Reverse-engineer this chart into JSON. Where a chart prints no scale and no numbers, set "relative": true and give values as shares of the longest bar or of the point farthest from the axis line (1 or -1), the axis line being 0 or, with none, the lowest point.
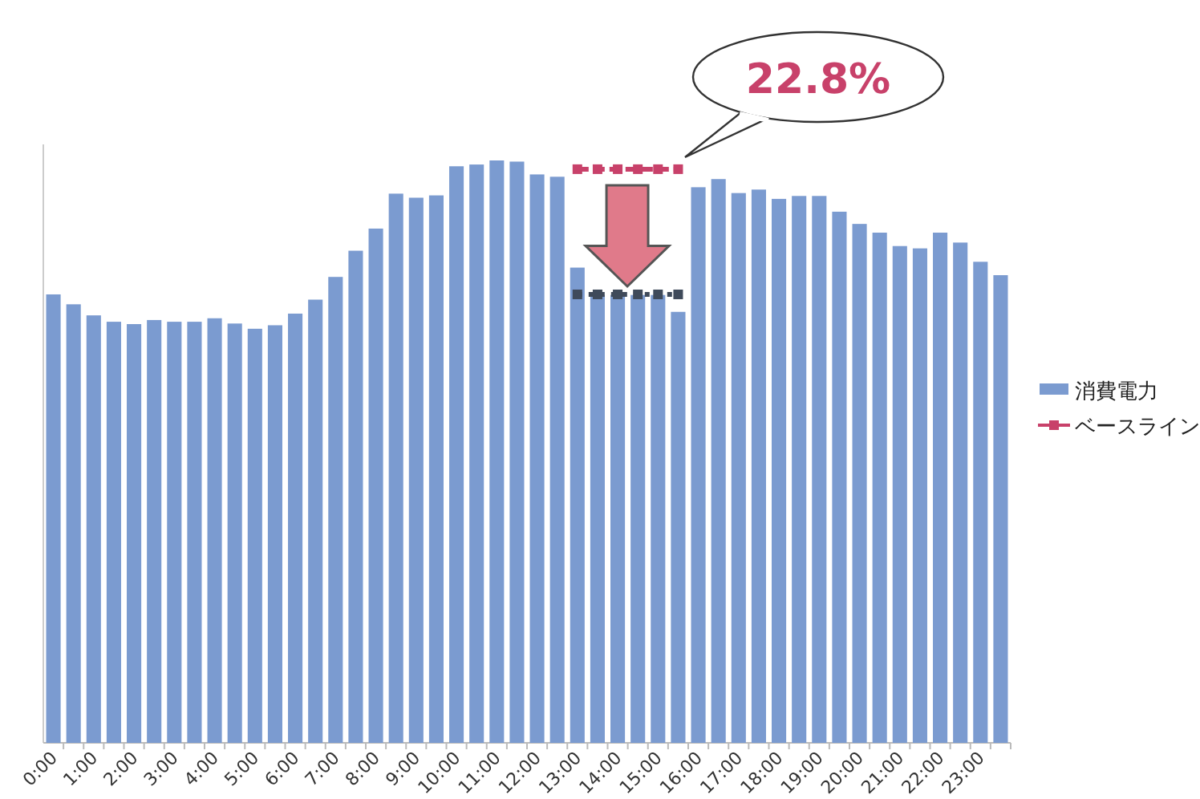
{
  "chart_data": {
    "type": "bar",
    "relative": true,
    "legend": "right",
    "grid": false,
    "categories": [
      "0:00",
      null,
      "1:00",
      null,
      "2:00",
      null,
      "3:00",
      null,
      "4:00",
      null,
      "5:00",
      null,
      "6:00",
      null,
      "7:00",
      null,
      "8:00",
      null,
      "9:00",
      null,
      "10:00",
      null,
      "11:00",
      null,
      "12:00",
      null,
      "13:00",
      null,
      "14:00",
      null,
      "15:00",
      null,
      "16:00",
      null,
      "17:00",
      null,
      "18:00",
      null,
      "19:00",
      null,
      "20:00",
      null,
      "21:00",
      null,
      "22:00",
      null,
      "23:00",
      null
    ],
    "series": [
      {
        "name": "消費電力",
        "color": "#7b9bd0",
        "values": [
          0.77,
          0.753,
          0.734,
          0.723,
          0.719,
          0.726,
          0.723,
          0.723,
          0.729,
          0.72,
          0.711,
          0.717,
          0.737,
          0.761,
          0.8,
          0.845,
          0.883,
          0.943,
          0.936,
          0.94,
          0.99,
          0.993,
          1,
          0.998,
          0.976,
          0.972,
          0.816,
          0.769,
          0.769,
          0.769,
          0.769,
          0.74,
          0.954,
          0.968,
          0.944,
          0.95,
          0.934,
          0.939,
          0.939,
          0.912,
          0.891,
          0.876,
          0.853,
          0.849,
          0.876,
          0.859,
          0.826,
          0.803
        ]
      },
      {
        "name": "ベースライン",
        "type": "line",
        "color": "#c8416a",
        "marker": "square",
        "line_style": "dashed",
        "values": [
          null,
          null,
          null,
          null,
          null,
          null,
          null,
          null,
          null,
          null,
          null,
          null,
          null,
          null,
          null,
          null,
          null,
          null,
          null,
          null,
          null,
          null,
          null,
          null,
          null,
          null,
          0.985,
          0.985,
          0.985,
          0.985,
          0.985,
          0.985,
          null,
          null,
          null,
          null,
          null,
          null,
          null,
          null,
          null,
          null,
          null,
          null,
          null,
          null,
          null,
          null
        ]
      },
      {
        "type": "line",
        "color": "#3f4a5a",
        "marker": "square",
        "line_style": "dotted",
        "values": [
          null,
          null,
          null,
          null,
          null,
          null,
          null,
          null,
          null,
          null,
          null,
          null,
          null,
          null,
          null,
          null,
          null,
          null,
          null,
          null,
          null,
          null,
          null,
          null,
          null,
          null,
          0.77,
          0.77,
          0.77,
          0.77,
          0.77,
          0.77,
          null,
          null,
          null,
          null,
          null,
          null,
          null,
          null,
          null,
          null,
          null,
          null,
          null,
          null,
          null,
          null
        ]
      }
    ],
    "annotations": [
      "22.8%"
    ]
  }
}
